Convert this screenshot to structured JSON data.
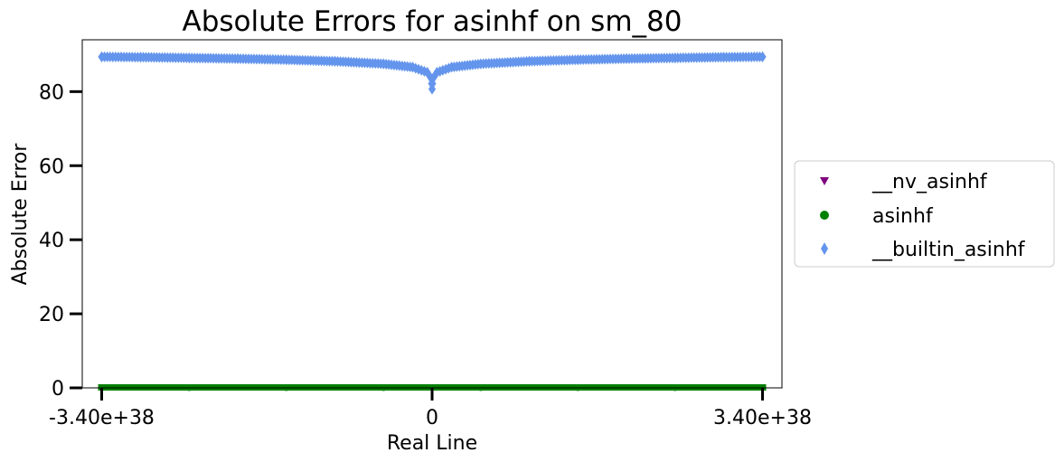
{
  "chart_data": {
    "type": "scatter",
    "title": "Absolute Errors for asinhf on sm_80",
    "xlabel": "Real Line",
    "ylabel": "Absolute Error",
    "xlim": [
      -3.6e+38,
      3.6e+38
    ],
    "ylim": [
      0,
      94
    ],
    "x_ticks": [
      -3.4e+38,
      0,
      3.4e+38
    ],
    "x_tick_labels": [
      "-3.40e+38",
      "0",
      "3.40e+38"
    ],
    "y_ticks": [
      0,
      20,
      40,
      60,
      80
    ],
    "y_tick_labels": [
      "0",
      "20",
      "40",
      "60",
      "80"
    ],
    "grid": false,
    "legend_position": "center-right-outside",
    "series": [
      {
        "name": "__nv_asinhf",
        "marker": "triangle-down",
        "color": "#800080",
        "x": [
          -3.4e+38,
          -2.5e+38,
          -1.5e+38,
          -5e+37,
          0,
          5e+37,
          1.5e+38,
          2.5e+38,
          3.4e+38
        ],
        "y": [
          0,
          0,
          0,
          0,
          0,
          0,
          0,
          0,
          0
        ]
      },
      {
        "name": "asinhf",
        "marker": "circle",
        "color": "#008000",
        "x": [
          -3.4e+38,
          -2.5e+38,
          -1.5e+38,
          -5e+37,
          0,
          5e+37,
          1.5e+38,
          2.5e+38,
          3.4e+38
        ],
        "y": [
          0,
          0,
          0,
          0,
          0,
          0,
          0,
          0,
          0
        ]
      },
      {
        "name": "__builtin_asinhf",
        "marker": "thin-diamond",
        "color": "#6495ED",
        "x": [
          -3.4e+38,
          -3e+38,
          -2.5e+38,
          -2e+38,
          -1.5e+38,
          -1e+38,
          -5e+37,
          -2e+37,
          -5e+36,
          -1e+36,
          0,
          1e+36,
          5e+36,
          2e+37,
          5e+37,
          1e+38,
          1.5e+38,
          2e+38,
          2.5e+38,
          3e+38,
          3.4e+38
        ],
        "y": [
          89.4,
          89.3,
          89.1,
          88.9,
          88.6,
          88.2,
          87.5,
          86.6,
          85.2,
          83.6,
          80.7,
          83.6,
          85.2,
          86.6,
          87.5,
          88.2,
          88.6,
          88.9,
          89.1,
          89.3,
          89.4
        ]
      }
    ]
  }
}
